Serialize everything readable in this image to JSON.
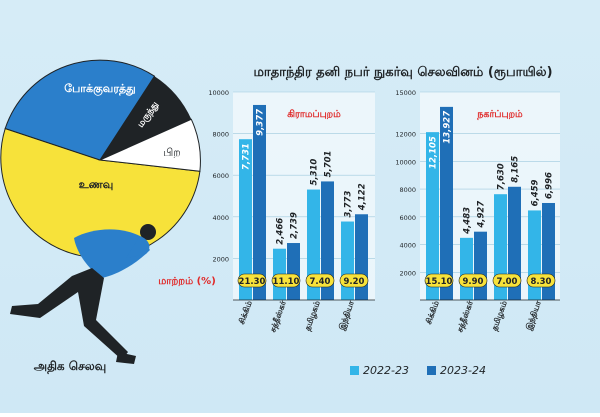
{
  "illustration": {
    "pie_labels": [
      "போக்குவரத்து",
      "மருந்து",
      "பிற",
      "உணவு"
    ],
    "caption": "அதிக செலவு",
    "colors": {
      "blue": "#2b7fcb",
      "black": "#1f2326",
      "white": "#ffffff",
      "yellow": "#f7e23a"
    }
  },
  "chart_title": "மாதாந்திர தனி நபர் நுகர்வு செலவினம் (ரூபாயில்)",
  "unit_label": "ரூபாய்",
  "change_label": "மாற்றம் (%)",
  "legend": [
    {
      "label": "2022-23",
      "color": "#33b5e8"
    },
    {
      "label": "2023-24",
      "color": "#1f6fb7"
    }
  ],
  "chart_data": [
    {
      "type": "bar",
      "title": "கிராமப்புறம்",
      "categories": [
        "சிக்கிம்",
        "சத்தீஸ்கர்",
        "தமிழகம்",
        "இந்தியா"
      ],
      "ylim": [
        0,
        10000
      ],
      "yticks": [
        2000,
        4000,
        6000,
        8000,
        10000
      ],
      "series": [
        {
          "name": "2022-23",
          "values": [
            7731,
            2466,
            5310,
            3773
          ],
          "labels": [
            "7,731",
            "2,466",
            "5,310",
            "3,773"
          ]
        },
        {
          "name": "2023-24",
          "values": [
            9377,
            2739,
            5701,
            4122
          ],
          "labels": [
            "9,377",
            "2,739",
            "5,701",
            "4,122"
          ]
        }
      ],
      "change_pct": [
        "21.30",
        "11.10",
        "7.40",
        "9.20"
      ]
    },
    {
      "type": "bar",
      "title": "நகர்ப்புறம்",
      "categories": [
        "சிக்கிம்",
        "சத்தீஸ்கர்",
        "தமிழகம்",
        "இந்தியா"
      ],
      "ylim": [
        0,
        15000
      ],
      "yticks": [
        2000,
        4000,
        6000,
        8000,
        10000,
        12000,
        15000
      ],
      "series": [
        {
          "name": "2022-23",
          "values": [
            12105,
            4483,
            7630,
            6459
          ],
          "labels": [
            "12,105",
            "4,483",
            "7,630",
            "6,459"
          ]
        },
        {
          "name": "2023-24",
          "values": [
            13927,
            4927,
            8165,
            6996
          ],
          "labels": [
            "13,927",
            "4,927",
            "8,165",
            "6,996"
          ]
        }
      ],
      "change_pct": [
        "15.10",
        "9.90",
        "7.00",
        "8.30"
      ]
    }
  ]
}
